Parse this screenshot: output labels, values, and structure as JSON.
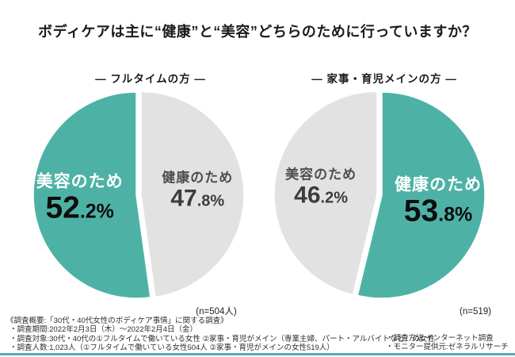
{
  "title": "ボディケアは主に“健康”と“美容”どちらのために行っていますか？",
  "chart_data": [
    {
      "type": "pie",
      "title": "― フルタイムの方 ―",
      "n_label": "(n=504人)",
      "start_angle": 0,
      "direction": "clockwise",
      "legend_position": "none",
      "slices": [
        {
          "label": "健康のため",
          "value": 47.8,
          "pct_int": "47",
          "pct_frac": ".8%",
          "color": "#e2e2e2",
          "exploded": true,
          "emphasis": false
        },
        {
          "label": "美容のため",
          "value": 52.2,
          "pct_int": "52",
          "pct_frac": ".2%",
          "color": "#4db2a5",
          "exploded": false,
          "emphasis": true
        }
      ]
    },
    {
      "type": "pie",
      "title": "― 家事・育児メインの方 ―",
      "n_label": "(n=519)",
      "start_angle": 0,
      "direction": "clockwise",
      "legend_position": "none",
      "slices": [
        {
          "label": "健康のため",
          "value": 53.8,
          "pct_int": "53",
          "pct_frac": ".8%",
          "color": "#4db2a5",
          "exploded": false,
          "emphasis": true
        },
        {
          "label": "美容のため",
          "value": 46.2,
          "pct_int": "46",
          "pct_frac": ".2%",
          "color": "#e2e2e2",
          "exploded": true,
          "emphasis": false
        }
      ]
    }
  ],
  "survey_notes": {
    "heading": "《調査概要:「30代・40代女性のボディケア事情」に関する調査》",
    "items": [
      "・調査期間:2022年2月3日（木）～2022年2月4日（金）",
      "・調査対象:30代・40代の①フルタイムで働いている女性 ②家事・育児がメイン（専業主婦、パート・アルバイトなど）の女性",
      "・調査人数:1,023人（①フルタイムで働いている女性504人 ②家事・育児がメインの女性519人）"
    ],
    "right_items": [
      "・調査方法:インターネット調査",
      "・モニター提供元:ゼネラルリサーチ"
    ]
  },
  "colors": {
    "teal": "#4db2a5",
    "gray": "#e2e2e2",
    "bottom_line": "#57abb5"
  }
}
